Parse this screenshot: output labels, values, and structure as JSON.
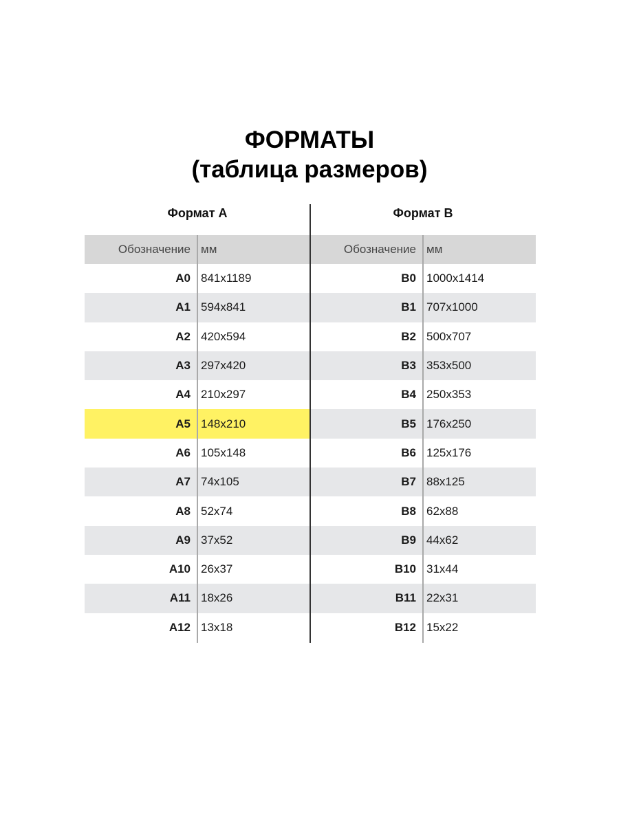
{
  "title": {
    "line1": "ФОРМАТЫ",
    "line2": "(таблица размеров)"
  },
  "colors": {
    "header_gray": "#d7d7d7",
    "row_gray": "#e6e7e9",
    "highlight": "#fff263"
  },
  "format_a": {
    "heading": "Формат А",
    "columns": [
      "Обозначение",
      "мм"
    ],
    "highlighted": "A5",
    "rows": [
      [
        "A0",
        "841x1189"
      ],
      [
        "A1",
        "594x841"
      ],
      [
        "A2",
        "420x594"
      ],
      [
        "A3",
        "297x420"
      ],
      [
        "A4",
        "210x297"
      ],
      [
        "A5",
        "148x210"
      ],
      [
        "A6",
        "105x148"
      ],
      [
        "A7",
        "74x105"
      ],
      [
        "A8",
        "52x74"
      ],
      [
        "A9",
        "37x52"
      ],
      [
        "A10",
        "26x37"
      ],
      [
        "A11",
        "18x26"
      ],
      [
        "A12",
        "13x18"
      ]
    ]
  },
  "format_b": {
    "heading": "Формат В",
    "columns": [
      "Обозначение",
      "мм"
    ],
    "rows": [
      [
        "B0",
        "1000x1414"
      ],
      [
        "B1",
        "707x1000"
      ],
      [
        "B2",
        "500x707"
      ],
      [
        "B3",
        "353x500"
      ],
      [
        "B4",
        "250x353"
      ],
      [
        "B5",
        "176x250"
      ],
      [
        "B6",
        "125x176"
      ],
      [
        "B7",
        "88x125"
      ],
      [
        "B8",
        "62x88"
      ],
      [
        "B9",
        "44x62"
      ],
      [
        "B10",
        "31x44"
      ],
      [
        "B11",
        "22x31"
      ],
      [
        "B12",
        "15x22"
      ]
    ]
  }
}
